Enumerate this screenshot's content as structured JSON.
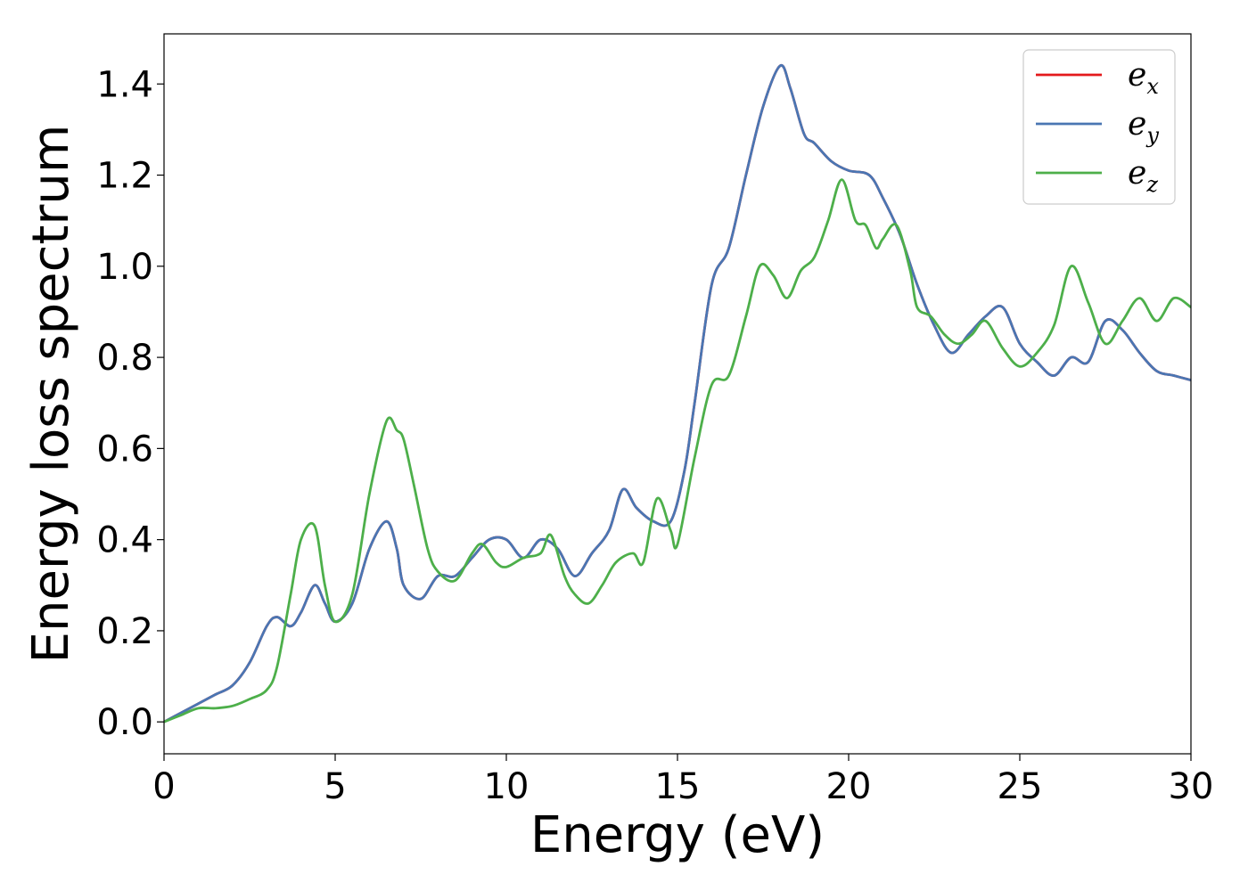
{
  "chart_data": {
    "type": "line",
    "xlabel": "Energy (eV)",
    "ylabel": "Energy loss spectrum",
    "xlim": [
      0,
      30
    ],
    "ylim": [
      -0.07,
      1.51
    ],
    "xticks": [
      0,
      5,
      10,
      15,
      20,
      25,
      30
    ],
    "xtick_labels": [
      "0",
      "5",
      "10",
      "15",
      "20",
      "25",
      "30"
    ],
    "yticks": [
      0.0,
      0.2,
      0.4,
      0.6,
      0.8,
      1.0,
      1.2,
      1.4
    ],
    "ytick_labels": [
      "0.0",
      "0.2",
      "0.4",
      "0.6",
      "0.8",
      "1.0",
      "1.2",
      "1.4"
    ],
    "grid": false,
    "legend_position": "top-right",
    "series": [
      {
        "name": "e_x",
        "label_base": "e",
        "label_sub": "x",
        "color": "#e41a1c",
        "x": [
          0,
          0.5,
          1,
          1.5,
          2,
          2.5,
          3,
          3.3,
          3.7,
          4,
          4.4,
          4.7,
          5,
          5.5,
          6,
          6.5,
          6.8,
          7,
          7.5,
          8,
          8.5,
          9,
          9.5,
          10,
          10.5,
          11,
          11.5,
          12,
          12.5,
          13,
          13.4,
          13.8,
          14.3,
          14.8,
          15.2,
          15.5,
          16,
          16.5,
          17,
          17.5,
          18,
          18.3,
          18.7,
          19,
          19.5,
          20,
          20.6,
          21,
          21.5,
          22,
          22.5,
          23,
          23.5,
          24,
          24.5,
          25,
          25.5,
          26,
          26.5,
          27,
          27.5,
          28,
          28.5,
          29,
          29.5,
          30
        ],
        "y": [
          0,
          0.02,
          0.04,
          0.06,
          0.08,
          0.13,
          0.21,
          0.23,
          0.21,
          0.24,
          0.3,
          0.26,
          0.22,
          0.26,
          0.38,
          0.44,
          0.38,
          0.3,
          0.27,
          0.32,
          0.32,
          0.36,
          0.4,
          0.4,
          0.36,
          0.4,
          0.38,
          0.32,
          0.37,
          0.42,
          0.51,
          0.47,
          0.44,
          0.44,
          0.55,
          0.7,
          0.96,
          1.04,
          1.2,
          1.35,
          1.44,
          1.39,
          1.29,
          1.27,
          1.23,
          1.21,
          1.2,
          1.15,
          1.07,
          0.96,
          0.87,
          0.81,
          0.85,
          0.89,
          0.91,
          0.83,
          0.79,
          0.76,
          0.8,
          0.79,
          0.88,
          0.86,
          0.81,
          0.77,
          0.76,
          0.75
        ]
      },
      {
        "name": "e_y",
        "label_base": "e",
        "label_sub": "y",
        "color": "#4a76b3",
        "x": [
          0,
          0.5,
          1,
          1.5,
          2,
          2.5,
          3,
          3.3,
          3.7,
          4,
          4.4,
          4.7,
          5,
          5.5,
          6,
          6.5,
          6.8,
          7,
          7.5,
          8,
          8.5,
          9,
          9.5,
          10,
          10.5,
          11,
          11.5,
          12,
          12.5,
          13,
          13.4,
          13.8,
          14.3,
          14.8,
          15.2,
          15.5,
          16,
          16.5,
          17,
          17.5,
          18,
          18.3,
          18.7,
          19,
          19.5,
          20,
          20.6,
          21,
          21.5,
          22,
          22.5,
          23,
          23.5,
          24,
          24.5,
          25,
          25.5,
          26,
          26.5,
          27,
          27.5,
          28,
          28.5,
          29,
          29.5,
          30
        ],
        "y": [
          0,
          0.02,
          0.04,
          0.06,
          0.08,
          0.13,
          0.21,
          0.23,
          0.21,
          0.24,
          0.3,
          0.26,
          0.22,
          0.26,
          0.38,
          0.44,
          0.38,
          0.3,
          0.27,
          0.32,
          0.32,
          0.36,
          0.4,
          0.4,
          0.36,
          0.4,
          0.38,
          0.32,
          0.37,
          0.42,
          0.51,
          0.47,
          0.44,
          0.44,
          0.55,
          0.7,
          0.96,
          1.04,
          1.2,
          1.35,
          1.44,
          1.39,
          1.29,
          1.27,
          1.23,
          1.21,
          1.2,
          1.15,
          1.07,
          0.96,
          0.87,
          0.81,
          0.85,
          0.89,
          0.91,
          0.83,
          0.79,
          0.76,
          0.8,
          0.79,
          0.88,
          0.86,
          0.81,
          0.77,
          0.76,
          0.75
        ]
      },
      {
        "name": "e_z",
        "label_base": "e",
        "label_sub": "z",
        "color": "#4daf4a",
        "x": [
          0,
          0.5,
          1,
          1.5,
          2,
          2.5,
          3,
          3.3,
          3.7,
          4,
          4.4,
          4.7,
          5,
          5.5,
          6,
          6.5,
          6.8,
          7,
          7.3,
          7.7,
          8,
          8.5,
          9,
          9.3,
          9.7,
          10,
          10.5,
          11,
          11.3,
          11.7,
          12,
          12.4,
          12.8,
          13.2,
          13.7,
          14,
          14.4,
          14.8,
          15,
          15.5,
          16,
          16.5,
          17,
          17.4,
          17.8,
          18.2,
          18.6,
          19,
          19.4,
          19.8,
          20.2,
          20.5,
          20.8,
          21,
          21.4,
          21.8,
          22,
          22.4,
          22.8,
          23.2,
          23.6,
          24,
          24.5,
          25,
          25.5,
          26,
          26.5,
          27,
          27.5,
          28,
          28.5,
          29,
          29.5,
          30
        ],
        "y": [
          0,
          0.015,
          0.03,
          0.03,
          0.035,
          0.05,
          0.07,
          0.12,
          0.28,
          0.4,
          0.43,
          0.3,
          0.22,
          0.28,
          0.5,
          0.66,
          0.64,
          0.62,
          0.52,
          0.38,
          0.33,
          0.31,
          0.37,
          0.39,
          0.35,
          0.34,
          0.36,
          0.37,
          0.41,
          0.32,
          0.28,
          0.26,
          0.3,
          0.35,
          0.37,
          0.35,
          0.49,
          0.42,
          0.39,
          0.58,
          0.74,
          0.76,
          0.89,
          1.0,
          0.98,
          0.93,
          0.99,
          1.02,
          1.1,
          1.19,
          1.1,
          1.09,
          1.04,
          1.06,
          1.09,
          0.99,
          0.91,
          0.89,
          0.85,
          0.83,
          0.85,
          0.88,
          0.82,
          0.78,
          0.81,
          0.87,
          1.0,
          0.92,
          0.83,
          0.88,
          0.93,
          0.88,
          0.93,
          0.91
        ]
      }
    ]
  }
}
